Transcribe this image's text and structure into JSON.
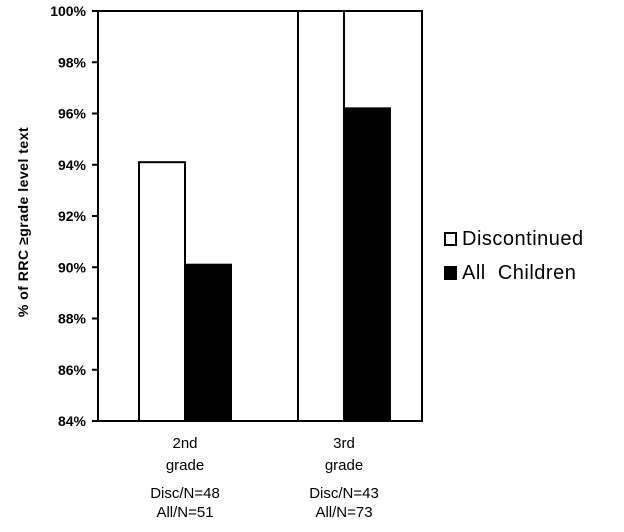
{
  "chart_data": {
    "type": "bar",
    "title": "",
    "xlabel": "",
    "ylabel": "% of RRC ≥grade level text",
    "ylim": [
      84,
      100
    ],
    "yticks": [
      "84%",
      "86%",
      "88%",
      "90%",
      "92%",
      "94%",
      "96%",
      "98%",
      "100%"
    ],
    "categories": [
      {
        "name": "2nd",
        "line2": "grade",
        "disc_n": "Disc/N=48",
        "all_n": "All/N=51"
      },
      {
        "name": "3rd",
        "line2": "grade",
        "disc_n": "Disc/N=43",
        "all_n": "All/N=73"
      }
    ],
    "series": [
      {
        "name": "Discontinued",
        "values": [
          94.1,
          100
        ],
        "color": "#ffffff"
      },
      {
        "name": "All  Children",
        "values": [
          90.1,
          96.2
        ],
        "color": "#000000"
      }
    ],
    "legend_position": "right",
    "grid": false
  }
}
